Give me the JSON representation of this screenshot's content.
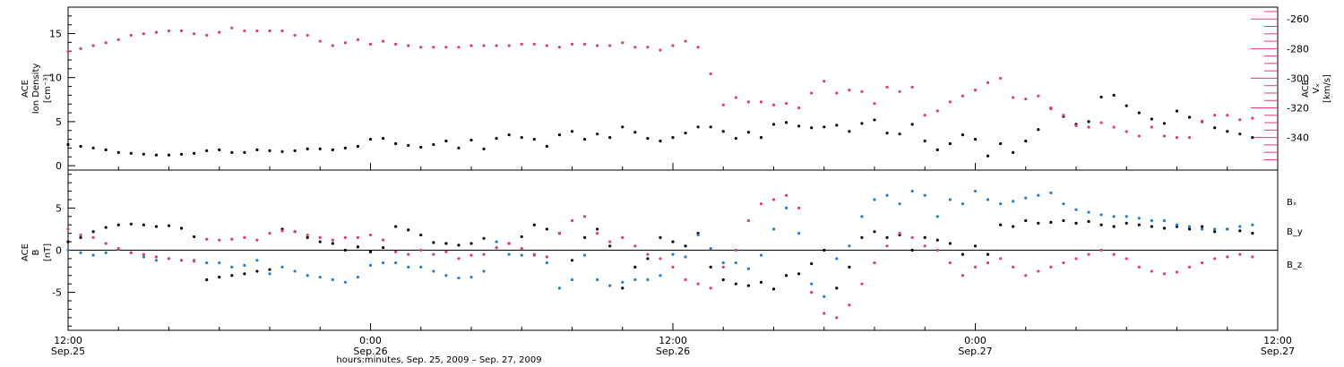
{
  "chart_data": [
    {
      "type": "scatter",
      "panel": "top",
      "ylabel_left": {
        "line1": "ACE",
        "line2": "Ion Density",
        "unit": "[cm⁻³]"
      },
      "ylabel_right": {
        "line1": "ACE",
        "line2": "Vₓ",
        "unit": "[km/s]"
      },
      "y_left": {
        "range": [
          -0.5,
          18
        ],
        "ticks": [
          0,
          5,
          10,
          15
        ],
        "tick_labels": [
          "0",
          "5",
          "10",
          "15"
        ]
      },
      "y_right": {
        "range": [
          -362,
          -252
        ],
        "ticks": [
          -340,
          -320,
          -300,
          -280,
          -260
        ],
        "tick_labels": [
          "-340",
          "-320",
          "-300",
          "-280",
          "-260"
        ]
      },
      "x_range_hours": [
        0,
        48
      ],
      "series": [
        {
          "axis": "left",
          "color": "#000000",
          "x": [
            0,
            0.5,
            1,
            1.5,
            2,
            2.5,
            3,
            3.5,
            4,
            4.5,
            5,
            5.5,
            6,
            6.5,
            7,
            7.5,
            8,
            8.5,
            9,
            9.5,
            10,
            10.5,
            11,
            11.5,
            12,
            12.5,
            13,
            13.5,
            14,
            14.5,
            15,
            15.5,
            16,
            16.5,
            17,
            17.5,
            18,
            18.5,
            19,
            19.5,
            20,
            20.5,
            21,
            21.5,
            22,
            22.5,
            23,
            23.5,
            24,
            24.5,
            25,
            25.5,
            26,
            26.5,
            27,
            27.5,
            28,
            28.5,
            29,
            29.5,
            30,
            30.5,
            31,
            31.5,
            32,
            32.5,
            33,
            33.5,
            34,
            34.5,
            35,
            35.5,
            36,
            36.5,
            37,
            37.5,
            38,
            38.5,
            39,
            39.5,
            40,
            40.5,
            41,
            41.5,
            42,
            42.5,
            43,
            43.5,
            44,
            44.5,
            45,
            45.5,
            46,
            46.5,
            47
          ],
          "y": [
            2.4,
            2.2,
            2.0,
            1.8,
            1.5,
            1.4,
            1.3,
            1.2,
            1.2,
            1.3,
            1.4,
            1.7,
            1.8,
            1.5,
            1.5,
            1.8,
            1.7,
            1.6,
            1.7,
            1.9,
            1.9,
            1.8,
            2.0,
            2.2,
            3.0,
            3.1,
            2.5,
            2.3,
            2.1,
            2.4,
            2.8,
            2.0,
            2.9,
            1.9,
            3.1,
            3.5,
            3.2,
            3.0,
            2.2,
            3.5,
            3.9,
            3.0,
            3.6,
            3.2,
            4.4,
            3.8,
            3.1,
            2.8,
            3.2,
            3.7,
            4.4,
            4.4,
            3.9,
            3.1,
            3.8,
            3.2,
            4.7,
            4.9,
            4.5,
            4.3,
            4.4,
            4.6,
            3.9,
            4.8,
            5.2,
            3.7,
            3.6,
            4.7,
            2.8,
            1.8,
            2.5,
            3.5,
            3.0,
            1.1,
            2.5,
            1.5,
            2.8,
            4.1,
            6.5,
            5.6,
            4.7,
            5.0,
            7.8,
            8.0,
            6.8,
            6.0,
            5.3,
            4.8,
            6.2,
            5.5,
            5.0,
            4.3,
            3.9,
            3.6,
            3.2
          ]
        },
        {
          "axis": "right",
          "color": "#e83a6e",
          "x": [
            0,
            0.5,
            1,
            1.5,
            2,
            2.5,
            3,
            3.5,
            4,
            4.5,
            5,
            5.5,
            6,
            6.5,
            7,
            7.5,
            8,
            8.5,
            9,
            9.5,
            10,
            10.5,
            11,
            11.5,
            12,
            12.5,
            13,
            13.5,
            14,
            14.5,
            15,
            15.5,
            16,
            16.5,
            17,
            17.5,
            18,
            18.5,
            19,
            19.5,
            20,
            20.5,
            21,
            21.5,
            22,
            22.5,
            23,
            23.5,
            24,
            24.5,
            25,
            25.5,
            26,
            26.5,
            27,
            27.5,
            28,
            28.5,
            29,
            29.5,
            30,
            30.5,
            31,
            31.5,
            32,
            32.5,
            33,
            33.5,
            34,
            34.5,
            35,
            35.5,
            36,
            36.5,
            37,
            37.5,
            38,
            38.5,
            39,
            39.5,
            40,
            40.5,
            41,
            41.5,
            42,
            42.5,
            43,
            43.5,
            44,
            44.5,
            45,
            45.5,
            46,
            46.5,
            47
          ],
          "y": [
            -282,
            -280,
            -278,
            -276,
            -274,
            -271,
            -270,
            -269,
            -268,
            -268,
            -270,
            -271,
            -269,
            -266,
            -268,
            -268,
            -268,
            -268,
            -271,
            -271,
            -275,
            -278,
            -276,
            -274,
            -277,
            -275,
            -277,
            -278,
            -279,
            -279,
            -279,
            -279,
            -278,
            -278,
            -278,
            -278,
            -277,
            -277,
            -278,
            -279,
            -277,
            -277,
            -278,
            -278,
            -276,
            -279,
            -279,
            -281,
            -278,
            -275,
            -279,
            -297,
            -318,
            -313,
            -316,
            -316,
            -318,
            -317,
            -320,
            -310,
            -302,
            -310,
            -308,
            -309,
            -317,
            -306,
            -309,
            -306,
            -325,
            -322,
            -316,
            -312,
            -308,
            -303,
            -300,
            -313,
            -314,
            -312,
            -320,
            -325,
            -332,
            -333,
            -330,
            -333,
            -336,
            -339,
            -333,
            -339,
            -340,
            -340,
            -329,
            -325,
            -325,
            -328,
            -327
          ]
        }
      ]
    },
    {
      "type": "scatter",
      "panel": "bottom",
      "ylabel": {
        "line1": "ACE",
        "line2": "B",
        "unit": "[nT]"
      },
      "y_range": [
        -9.5,
        9.5
      ],
      "ticks": [
        -5,
        0,
        5
      ],
      "tick_labels": [
        "-5",
        "0",
        "5"
      ],
      "x_range_hours": [
        0,
        48
      ],
      "series": [
        {
          "name": "Bₓ",
          "color": "#000000",
          "x": [
            0,
            0.5,
            1,
            1.5,
            2,
            2.5,
            3,
            3.5,
            4,
            4.5,
            5,
            5.5,
            6,
            6.5,
            7,
            7.5,
            8,
            8.5,
            9,
            9.5,
            10,
            10.5,
            11,
            11.5,
            12,
            12.5,
            13,
            13.5,
            14,
            14.5,
            15,
            15.5,
            16,
            16.5,
            17,
            17.5,
            18,
            18.5,
            19,
            19.5,
            20,
            20.5,
            21,
            21.5,
            22,
            22.5,
            23,
            23.5,
            24,
            24.5,
            25,
            25.5,
            26,
            26.5,
            27,
            27.5,
            28,
            28.5,
            29,
            29.5,
            30,
            30.5,
            31,
            31.5,
            32,
            32.5,
            33,
            33.5,
            34,
            34.5,
            35,
            35.5,
            36,
            36.5,
            37,
            37.5,
            38,
            38.5,
            39,
            39.5,
            40,
            40.5,
            41,
            41.5,
            42,
            42.5,
            43,
            43.5,
            44,
            44.5,
            45,
            45.5,
            46,
            46.5,
            47
          ],
          "y": [
            1.0,
            1.5,
            2.2,
            2.7,
            3.0,
            3.1,
            3.0,
            2.8,
            2.9,
            2.6,
            1.6,
            -3.5,
            -3.2,
            -3.0,
            -2.8,
            -2.5,
            -2.3,
            2.5,
            2.2,
            1.5,
            1.0,
            0.8,
            0.0,
            0.4,
            -0.2,
            0.3,
            2.8,
            2.4,
            1.8,
            0.9,
            0.8,
            0.6,
            0.8,
            1.4,
            0.3,
            0.8,
            1.6,
            3.0,
            2.5,
            2.0,
            -1.2,
            1.5,
            2.5,
            0.5,
            -4.5,
            -2.0,
            -1.0,
            1.5,
            1.0,
            0.5,
            2.0,
            -2.0,
            -3.5,
            -4.0,
            -4.2,
            -3.8,
            -4.6,
            -3.0,
            -2.8,
            -1.6,
            0.0,
            -4.5,
            -2.0,
            1.5,
            2.2,
            1.5,
            1.8,
            0.0,
            1.5,
            1.2,
            0.8,
            -0.5,
            0.5,
            -0.5,
            3.0,
            2.8,
            3.5,
            3.2,
            3.3,
            3.5,
            3.2,
            3.4,
            3.0,
            2.8,
            3.2,
            3.0,
            2.8,
            2.6,
            2.8,
            2.5,
            2.8,
            2.2,
            2.5,
            2.3,
            2.0
          ]
        },
        {
          "name": "B_y",
          "color": "#1f7fd6",
          "x": [
            0,
            0.5,
            1,
            1.5,
            2,
            2.5,
            3,
            3.5,
            4,
            4.5,
            5,
            5.5,
            6,
            6.5,
            7,
            7.5,
            8,
            8.5,
            9,
            9.5,
            10,
            10.5,
            11,
            11.5,
            12,
            12.5,
            13,
            13.5,
            14,
            14.5,
            15,
            15.5,
            16,
            16.5,
            17,
            17.5,
            18,
            18.5,
            19,
            19.5,
            20,
            20.5,
            21,
            21.5,
            22,
            22.5,
            23,
            23.5,
            24,
            24.5,
            25,
            25.5,
            26,
            26.5,
            27,
            27.5,
            28,
            28.5,
            29,
            29.5,
            30,
            30.5,
            31,
            31.5,
            32,
            32.5,
            33,
            33.5,
            34,
            34.5,
            35,
            35.5,
            36,
            36.5,
            37,
            37.5,
            38,
            38.5,
            39,
            39.5,
            40,
            40.5,
            41,
            41.5,
            42,
            42.5,
            43,
            43.5,
            44,
            44.5,
            45,
            45.5,
            46,
            46.5,
            47
          ],
          "y": [
            0.0,
            -0.3,
            -0.6,
            -0.3,
            0.1,
            -0.3,
            -0.8,
            -1.2,
            -1.0,
            -1.2,
            -1.2,
            -1.5,
            -1.5,
            -2.0,
            -1.8,
            -1.2,
            -2.8,
            -2.0,
            -2.5,
            -3.0,
            -3.2,
            -3.5,
            -3.8,
            -3.2,
            -1.8,
            -1.5,
            -1.5,
            -2.0,
            -2.0,
            -2.5,
            -3.0,
            -3.3,
            -3.2,
            -2.5,
            1.0,
            -0.5,
            -0.6,
            -0.6,
            -1.5,
            -4.5,
            -3.5,
            -0.6,
            -3.5,
            -4.2,
            -3.8,
            -3.5,
            -3.5,
            -3.0,
            -0.5,
            -0.8,
            1.8,
            0.2,
            -1.5,
            -1.5,
            -2.2,
            -0.6,
            2.5,
            5.0,
            2.0,
            -4.0,
            -5.5,
            -1.0,
            0.5,
            4.0,
            6.0,
            6.5,
            5.5,
            7.0,
            6.5,
            4.0,
            6.0,
            5.5,
            7.0,
            6.0,
            5.5,
            5.8,
            6.2,
            6.5,
            6.8,
            5.5,
            4.8,
            4.5,
            4.2,
            4.0,
            4.0,
            3.8,
            3.5,
            3.5,
            3.0,
            2.8,
            2.5,
            2.5,
            2.5,
            2.8,
            3.0
          ]
        },
        {
          "name": "B_z",
          "color": "#e83a6e",
          "x": [
            0,
            0.5,
            1,
            1.5,
            2,
            2.5,
            3,
            3.5,
            4,
            4.5,
            5,
            5.5,
            6,
            6.5,
            7,
            7.5,
            8,
            8.5,
            9,
            9.5,
            10,
            10.5,
            11,
            11.5,
            12,
            12.5,
            13,
            13.5,
            14,
            14.5,
            15,
            15.5,
            16,
            16.5,
            17,
            17.5,
            18,
            18.5,
            19,
            19.5,
            20,
            20.5,
            21,
            21.5,
            22,
            22.5,
            23,
            23.5,
            24,
            24.5,
            25,
            25.5,
            26,
            26.5,
            27,
            27.5,
            28,
            28.5,
            29,
            29.5,
            30,
            30.5,
            31,
            31.5,
            32,
            32.5,
            33,
            33.5,
            34,
            34.5,
            35,
            35.5,
            36,
            36.5,
            37,
            37.5,
            38,
            38.5,
            39,
            39.5,
            40,
            40.5,
            41,
            41.5,
            42,
            42.5,
            43,
            43.5,
            44,
            44.5,
            45,
            45.5,
            46,
            46.5,
            47
          ],
          "y": [
            2.5,
            1.8,
            1.5,
            0.8,
            0.2,
            -0.3,
            -0.5,
            -0.8,
            -1.0,
            -1.2,
            -1.3,
            1.3,
            1.2,
            1.3,
            1.5,
            1.2,
            2.0,
            2.3,
            2.2,
            1.8,
            1.5,
            1.2,
            1.5,
            1.5,
            1.8,
            1.2,
            -0.2,
            -0.5,
            0.0,
            -0.5,
            -0.2,
            -1.0,
            -0.6,
            -0.5,
            0.3,
            0.8,
            0.2,
            -0.5,
            -0.8,
            2.0,
            3.5,
            4.0,
            2.0,
            1.0,
            1.5,
            0.5,
            -0.5,
            -1.0,
            -2.0,
            -3.5,
            -4.0,
            -4.5,
            -2.0,
            0.0,
            3.5,
            5.5,
            6.0,
            6.5,
            5.0,
            -5.0,
            -7.5,
            -8.0,
            -6.5,
            -4.0,
            -1.5,
            0.5,
            2.0,
            1.5,
            0.5,
            0.0,
            -1.5,
            -3.0,
            -2.0,
            -1.5,
            -1.0,
            -2.0,
            -3.0,
            -2.5,
            -2.0,
            -1.5,
            -1.0,
            -0.5,
            0.0,
            -0.5,
            -1.0,
            -2.0,
            -2.5,
            -2.8,
            -2.6,
            -2.0,
            -1.5,
            -1.0,
            -0.8,
            -0.5,
            -0.8
          ]
        }
      ]
    }
  ],
  "x_axis": {
    "range_hours": [
      0,
      48
    ],
    "major_ticks": [
      {
        "hour": 0,
        "time": "12:00",
        "date": "Sep.25"
      },
      {
        "hour": 12,
        "time": "0:00",
        "date": "Sep.26"
      },
      {
        "hour": 24,
        "time": "12:00",
        "date": "Sep.26"
      },
      {
        "hour": 36,
        "time": "0:00",
        "date": "Sep.27"
      },
      {
        "hour": 48,
        "time": "12:00",
        "date": "Sep.27"
      }
    ],
    "xlabel": "hours:minutes, Sep. 25, 2009 – Sep. 27, 2009"
  }
}
